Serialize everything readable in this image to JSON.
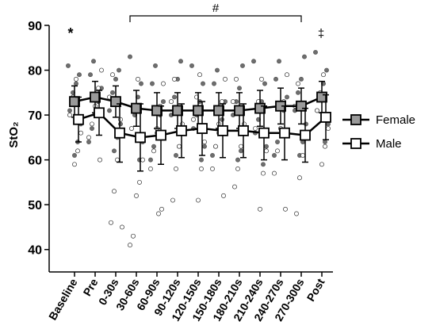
{
  "chart_data": {
    "type": "dot-mean",
    "ylabel": "StO₂",
    "categories": [
      "Baseline",
      "Pre",
      "0-30s",
      "30-60s",
      "60-90s",
      "90-120s",
      "120-150s",
      "150-180s",
      "180-210s",
      "210-240s",
      "240-270s",
      "270-300s",
      "Post"
    ],
    "ylim": [
      35,
      90
    ],
    "yticks": [
      40,
      50,
      60,
      70,
      80,
      90
    ],
    "annotations": [
      "*",
      "#",
      "‡"
    ],
    "legend": "right",
    "series": [
      {
        "name": "Female",
        "color": "#9a9a9a",
        "dot_color": "#6e6e6e",
        "values": [
          73,
          74,
          73,
          71.5,
          71,
          71,
          71,
          71,
          71,
          71.5,
          72,
          72,
          74
        ],
        "errors": [
          3.5,
          3.5,
          3.5,
          4,
          4,
          4,
          4,
          4,
          4,
          4,
          4,
          4,
          3.5
        ],
        "points": [
          [
            81,
            79,
            77,
            75,
            71,
            68,
            64,
            61
          ],
          [
            82,
            79,
            76,
            73,
            70,
            67,
            64
          ],
          [
            80,
            78,
            75,
            71,
            68,
            65,
            62
          ],
          [
            83,
            77,
            74,
            70,
            67,
            64,
            60
          ],
          [
            81,
            77,
            73,
            70,
            66,
            63,
            60
          ],
          [
            82,
            78,
            74,
            70,
            67,
            63,
            61
          ],
          [
            81,
            77,
            73,
            70,
            67,
            63,
            60
          ],
          [
            80,
            77,
            73,
            69,
            66,
            63,
            61
          ],
          [
            81,
            76,
            73,
            70,
            66,
            62,
            60
          ],
          [
            82,
            77,
            73,
            69,
            66,
            63,
            59
          ],
          [
            82,
            78,
            74,
            71,
            67,
            64,
            61
          ],
          [
            83,
            78,
            75,
            71,
            68,
            64,
            61
          ],
          [
            84,
            80,
            77,
            74,
            71,
            68,
            64
          ]
        ]
      },
      {
        "name": "Male",
        "color": "#ffffff",
        "dot_color": "#ffffff",
        "values": [
          69,
          70.5,
          66,
          65,
          65.5,
          66.5,
          67,
          66.5,
          66.5,
          66,
          66,
          65.5,
          69.5
        ],
        "errors": [
          5,
          5,
          6.5,
          7.5,
          6.5,
          6,
          6,
          6,
          6,
          6,
          6,
          6,
          5
        ],
        "points": [
          [
            78,
            74,
            70,
            66,
            62,
            59
          ],
          [
            80,
            76,
            72,
            68,
            65,
            60
          ],
          [
            79,
            74,
            69,
            60,
            53,
            46,
            45
          ],
          [
            78,
            72,
            67,
            60,
            55,
            52,
            43,
            41
          ],
          [
            77,
            72,
            67,
            62,
            58,
            49,
            48
          ],
          [
            78,
            73,
            68,
            63,
            58,
            51
          ],
          [
            79,
            74,
            69,
            64,
            58,
            51
          ],
          [
            78,
            73,
            68,
            63,
            58,
            52
          ],
          [
            78,
            73,
            68,
            63,
            58,
            54
          ],
          [
            78,
            73,
            67,
            62,
            57,
            49
          ],
          [
            79,
            73,
            67,
            62,
            57,
            49
          ],
          [
            77,
            72,
            66,
            61,
            56,
            48
          ],
          [
            79,
            75,
            71,
            67,
            63,
            59
          ]
        ]
      }
    ]
  }
}
